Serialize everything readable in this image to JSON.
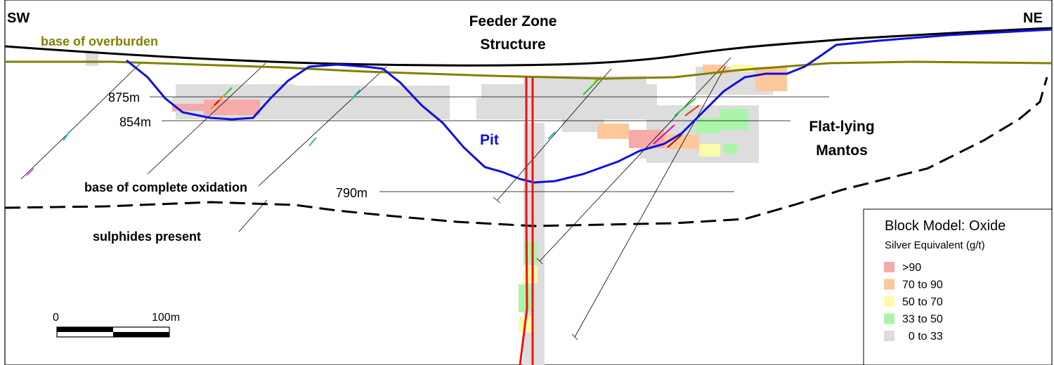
{
  "orientation": {
    "left": "SW",
    "right": "NE"
  },
  "labels": {
    "base_of_overburden": "base of overburden",
    "feeder_zone_line1": "Feeder Zone",
    "feeder_zone_line2": "Structure",
    "flat_lying_line1": "Flat-lying",
    "flat_lying_line2": "Mantos",
    "pit": "Pit",
    "base_complete_oxidation": "base of complete oxidation",
    "sulphides_present": "sulphides present"
  },
  "elevations": {
    "e875": "875m",
    "e854": "854m",
    "e790": "790m"
  },
  "scale_bar": {
    "start": "0",
    "end": "100m"
  },
  "legend": {
    "title": "Block Model: Oxide",
    "subtitle": "Silver Equivalent (g/t)",
    "items": [
      {
        "label": ">90",
        "color": "#f7aaaa"
      },
      {
        "label": "70 to 90",
        "color": "#fcc89a"
      },
      {
        "label": "50 to 70",
        "color": "#fbfbaa"
      },
      {
        "label": "33 to 50",
        "color": "#aaf5aa"
      },
      {
        "label": "  0 to 33",
        "color": "#dddddd"
      }
    ]
  },
  "colors": {
    "overburden": "#808000",
    "pit": "#1010dd",
    "feeder": "#ee1111",
    "topography": "#000000"
  }
}
